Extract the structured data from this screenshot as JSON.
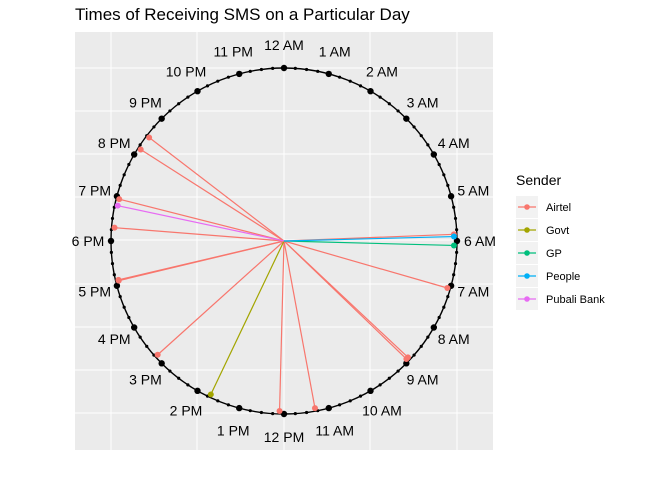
{
  "chart_data": {
    "type": "clock-radial",
    "title": "Times of Receiving SMS on a Particular Day",
    "hour_labels": [
      "12 AM",
      "1 AM",
      "2 AM",
      "3 AM",
      "4 AM",
      "5 AM",
      "6 AM",
      "7 AM",
      "8 AM",
      "9 AM",
      "10 AM",
      "11 AM",
      "12 PM",
      "1 PM",
      "2 PM",
      "3 PM",
      "4 PM",
      "5 PM",
      "6 PM",
      "7 PM",
      "8 PM",
      "9 PM",
      "10 PM",
      "11 PM"
    ],
    "legend": {
      "title": "Sender",
      "items": [
        {
          "label": "Airtel",
          "color": "#F8766D"
        },
        {
          "label": "Govt",
          "color": "#A3A500"
        },
        {
          "label": "GP",
          "color": "#00BF7D"
        },
        {
          "label": "People",
          "color": "#00B0F6"
        },
        {
          "label": "Pubali Bank",
          "color": "#E76BF3"
        }
      ]
    },
    "messages": [
      {
        "sender": "Airtel",
        "time_hours": 5.85
      },
      {
        "sender": "Airtel",
        "time_hours": 7.07
      },
      {
        "sender": "Airtel",
        "time_hours": 8.88
      },
      {
        "sender": "Airtel",
        "time_hours": 8.93
      },
      {
        "sender": "Airtel",
        "time_hours": 11.3
      },
      {
        "sender": "Airtel",
        "time_hours": 12.1
      },
      {
        "sender": "Airtel",
        "time_hours": 15.2
      },
      {
        "sender": "Airtel",
        "time_hours": 17.1
      },
      {
        "sender": "Airtel",
        "time_hours": 17.12
      },
      {
        "sender": "Airtel",
        "time_hours": 18.3
      },
      {
        "sender": "Airtel",
        "time_hours": 18.95
      },
      {
        "sender": "Airtel",
        "time_hours": 20.17
      },
      {
        "sender": "Airtel",
        "time_hours": 20.5
      },
      {
        "sender": "Govt",
        "time_hours": 13.7
      },
      {
        "sender": "GP",
        "time_hours": 6.1
      },
      {
        "sender": "People",
        "time_hours": 5.9
      },
      {
        "sender": "Pubali Bank",
        "time_hours": 18.8
      }
    ]
  }
}
